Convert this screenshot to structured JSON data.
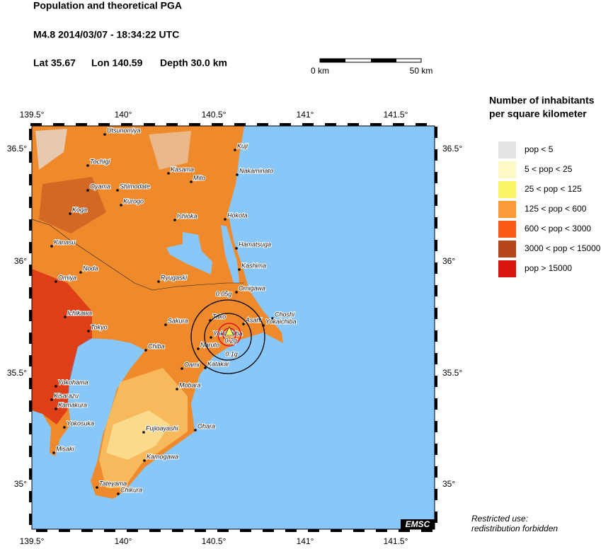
{
  "header": {
    "title": "Population and theoretical PGA",
    "event": "M4.8  2014/03/07 - 18:34:22 UTC",
    "lat": "Lat 35.67",
    "lon": "Lon 140.59",
    "depth": "Depth  30.0 km"
  },
  "scale_bar": {
    "start": "0 km",
    "end": "50 km"
  },
  "map": {
    "lon_labels": [
      "139.5°",
      "140°",
      "140.5°",
      "141°",
      "141.5°"
    ],
    "lat_labels": [
      "36.5°",
      "36°",
      "35.5°",
      "35°"
    ],
    "cities": [
      "Utsunomiya",
      "Tochigi",
      "Kasama",
      "Mito",
      "Oyama",
      "Shimodate",
      "Kurogo",
      "Koga",
      "Ishioka",
      "Hokota",
      "Kuji",
      "Nakaminato",
      "Kanasu",
      "Hamatsuga",
      "Kashima",
      "Noda",
      "Omiya",
      "Ryugaski",
      "Omigawa",
      "Choshi",
      "Ichikawa",
      "Tako",
      "Sakura",
      "Asahi",
      "Yokaichiba",
      "Tokyo",
      "Yokoshiba",
      "Naruto",
      "Chiba",
      "Oami",
      "Katakai",
      "Mobara",
      "Yokohama",
      "Kisarazu",
      "Kamakura",
      "Yokosuka",
      "Fujioayashi",
      "Ohara",
      "Misaki",
      "Kamogawa",
      "Tateyama",
      "Chikura"
    ],
    "pga_labels": [
      "0.05g",
      "0.1g",
      "0.2g"
    ],
    "logo": "EMSC"
  },
  "legend": {
    "title": [
      "Number of inhabitants",
      "per square kilometer"
    ],
    "entries": [
      {
        "label": "pop < 5",
        "color": "#e4e4e4"
      },
      {
        "label": "5 < pop < 25",
        "color": "#fcf9c6"
      },
      {
        "label": "25 < pop < 125",
        "color": "#f8f466"
      },
      {
        "label": "125 < pop < 600",
        "color": "#fb9a36"
      },
      {
        "label": "600 < pop < 3000",
        "color": "#fb5a16"
      },
      {
        "label": "3000 < pop < 15000",
        "color": "#b4471b"
      },
      {
        "label": "pop > 15000",
        "color": "#d8150f"
      }
    ]
  },
  "footer": [
    "Restricted use:",
    "redistribution forbidden"
  ]
}
